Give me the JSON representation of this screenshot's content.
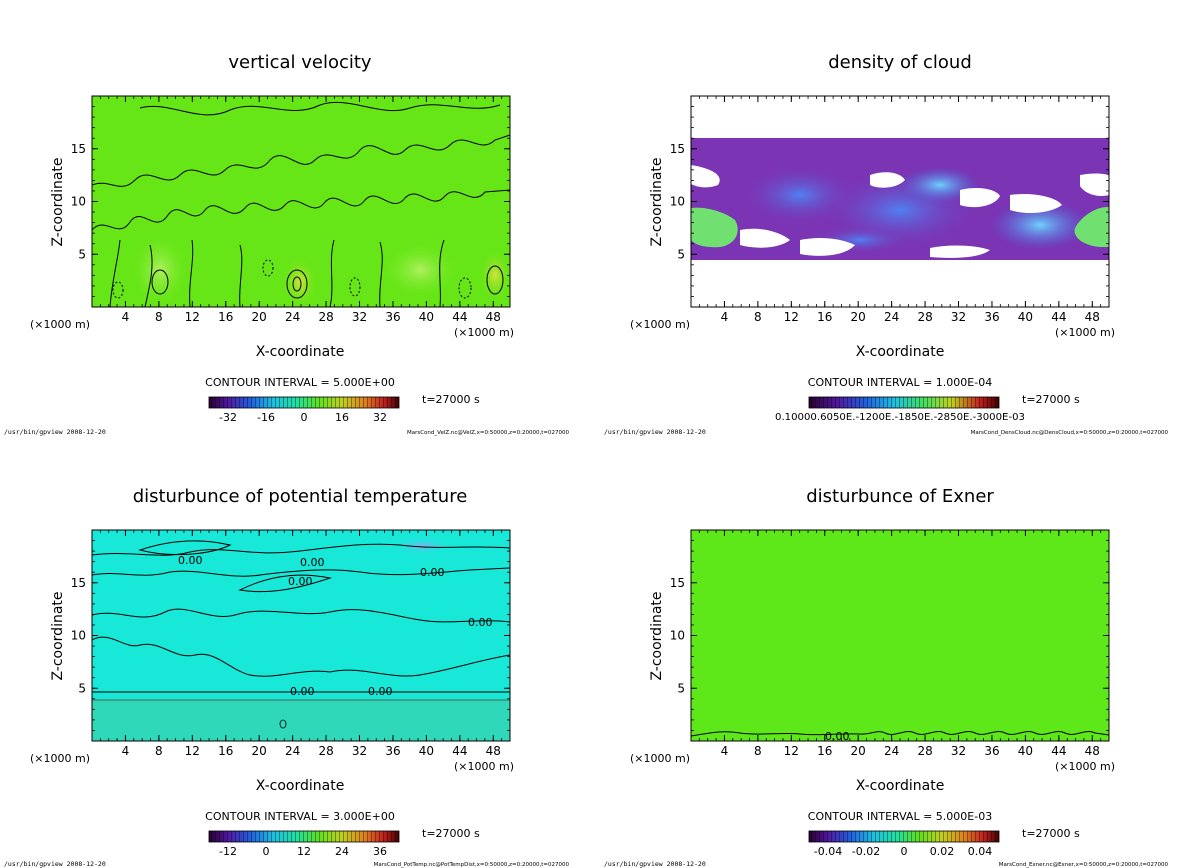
{
  "panels": [
    {
      "title": "vertical velocity",
      "contour_interval": "CONTOUR INTERVAL = 5.000E+00",
      "time_label": "t=27000 s",
      "footer_left": "/usr/bin/gpview   2008-12-20",
      "footer_right": "MarsCond_VelZ.nc@VelZ,x=0:50000,z=0:20000,t=027000",
      "colorbar_ticks": [
        "-32",
        "-16",
        "0",
        "16",
        "32"
      ]
    },
    {
      "title": "density of cloud",
      "contour_interval": "CONTOUR INTERVAL = 1.000E-04",
      "time_label": "t=27000 s",
      "footer_left": "/usr/bin/gpview   2008-12-20",
      "footer_right": "MarsCond_DensCloud.nc@DensCloud,x=0:50000,z=0:20000,t=027000",
      "colorbar_ticks_overlapping": "0.10000.6050E.-1200E.-1850E.-2850E.-3000E-03"
    },
    {
      "title": "disturbunce of potential temperature",
      "contour_interval": "CONTOUR INTERVAL = 3.000E+00",
      "time_label": "t=27000 s",
      "footer_left": "/usr/bin/gpview   2008-12-20",
      "footer_right": "MarsCond_PotTemp.nc@PotTempDist,x=0:50000,z=0:20000,t=027000",
      "colorbar_ticks": [
        "-12",
        "0",
        "12",
        "24",
        "36"
      ],
      "contour_labels": [
        "0.00",
        "0.00",
        "0.00",
        "0.00",
        "0.00",
        "0.00",
        "0.00"
      ]
    },
    {
      "title": "disturbunce of Exner",
      "contour_interval": "CONTOUR INTERVAL = 5.000E-03",
      "time_label": "t=27000 s",
      "footer_left": "/usr/bin/gpview   2008-12-20",
      "footer_right": "MarsCond_Exner.nc@Exner,x=0:50000,z=0:20000,t=027000",
      "colorbar_ticks": [
        "-0.04",
        "-0.02",
        "0",
        "0.02",
        "0.04"
      ],
      "contour_labels": [
        "0.00"
      ]
    }
  ],
  "chart_data": [
    {
      "type": "heatmap",
      "title": "vertical velocity",
      "xlabel": "X-coordinate",
      "ylabel": "Z-coordinate",
      "x_unit": "(×1000 m)",
      "y_unit": "(×1000 m)",
      "xlim": [
        0,
        50
      ],
      "ylim": [
        0,
        20
      ],
      "x_ticks": [
        4,
        8,
        12,
        16,
        20,
        24,
        28,
        32,
        36,
        40,
        44,
        48
      ],
      "y_ticks": [
        5,
        10,
        15
      ],
      "colorbar_range": [
        -40,
        40
      ],
      "background": "#66e616",
      "colors": [
        "#66e616",
        "#7ee82a",
        "#9fd84a"
      ]
    },
    {
      "type": "heatmap",
      "title": "density of cloud",
      "xlabel": "X-coordinate",
      "ylabel": "Z-coordinate",
      "x_unit": "(×1000 m)",
      "y_unit": "(×1000 m)",
      "xlim": [
        0,
        50
      ],
      "ylim": [
        0,
        20
      ],
      "x_ticks": [
        4,
        8,
        12,
        16,
        20,
        24,
        28,
        32,
        36,
        40,
        44,
        48
      ],
      "y_ticks": [
        5,
        10,
        15
      ],
      "cloud_layer_z": [
        4.5,
        16
      ],
      "colors": [
        "#7a34b4",
        "#3060e0",
        "#60c0ff",
        "#70e070"
      ]
    },
    {
      "type": "heatmap",
      "title": "disturbunce of potential temperature",
      "xlabel": "X-coordinate",
      "ylabel": "Z-coordinate",
      "x_unit": "(×1000 m)",
      "y_unit": "(×1000 m)",
      "xlim": [
        0,
        50
      ],
      "ylim": [
        0,
        20
      ],
      "x_ticks": [
        4,
        8,
        12,
        16,
        20,
        24,
        28,
        32,
        36,
        40,
        44,
        48
      ],
      "y_ticks": [
        5,
        10,
        15
      ],
      "colorbar_range": [
        -18,
        42
      ],
      "colors": [
        "#17e8d8",
        "#2ad8b0",
        "#60b8e0"
      ]
    },
    {
      "type": "heatmap",
      "title": "disturbunce of Exner",
      "xlabel": "X-coordinate",
      "ylabel": "Z-coordinate",
      "x_unit": "(×1000 m)",
      "y_unit": "(×1000 m)",
      "xlim": [
        0,
        50
      ],
      "ylim": [
        0,
        20
      ],
      "x_ticks": [
        4,
        8,
        12,
        16,
        20,
        24,
        28,
        32,
        36,
        40,
        44,
        48
      ],
      "y_ticks": [
        5,
        10,
        15
      ],
      "colorbar_range": [
        -0.05,
        0.05
      ],
      "background": "#5ee81a",
      "colors": [
        "#5ee81a"
      ]
    }
  ]
}
